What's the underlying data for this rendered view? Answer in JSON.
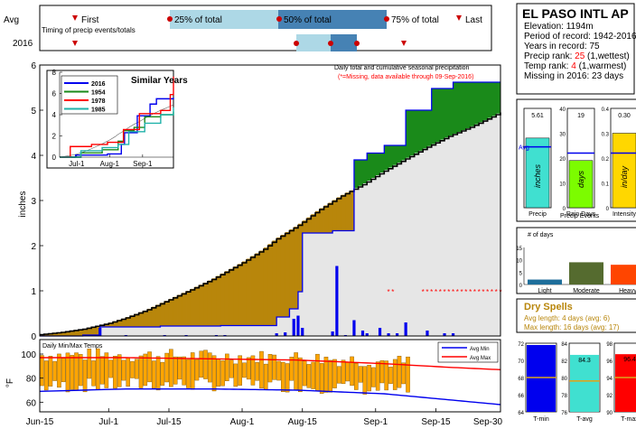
{
  "timing": {
    "avg_label": "Avg",
    "year_label": "2016",
    "caption": "Timing of precip events/totals",
    "first_label": "First",
    "p25_label": "25% of total",
    "p50_label": "50% of total",
    "p75_label": "75% of total",
    "last_label": "Last"
  },
  "station": {
    "name": "EL PASO INTL AP",
    "elevation_line": "Elevation: 1194m",
    "period_line": "Period of record: 1942-2016",
    "years_line": "Years in record: 75",
    "precip_rank_prefix": "Precip rank: ",
    "precip_rank_value": "25",
    "precip_rank_suffix": " (1,wettest)",
    "temp_rank_prefix": "Temp rank: ",
    "temp_rank_value": "4",
    "temp_rank_suffix": " (1,warmest)",
    "missing_line": "Missing in 2016: 23 days"
  },
  "colors": {
    "green": "#1a8a1a",
    "brown": "#b8860b",
    "blue": "#0000ee",
    "red": "#ff0000",
    "missing": "#ff0000",
    "grey_fill": "#e6e6e6"
  },
  "chart_data": [
    {
      "type": "area",
      "title": "Daily total and cumulative seasonal precipitation",
      "note": "(*=Missing, data available through 09-Sep-2016)",
      "ylabel": "inches",
      "ylim": [
        0,
        6
      ],
      "yticks": [
        "0",
        "1",
        "2",
        "3",
        "4",
        "5",
        "6"
      ],
      "xticks": [
        "Jun-15",
        "Jul-1",
        "Jul-15",
        "Aug-1",
        "Aug-15",
        "Sep-1",
        "Sep-15",
        "Sep-30"
      ],
      "x_days": [
        0,
        16,
        30,
        47,
        61,
        78,
        92,
        107
      ],
      "avg_cum": [
        [
          0,
          0.03
        ],
        [
          5,
          0.08
        ],
        [
          10,
          0.15
        ],
        [
          16,
          0.28
        ],
        [
          20,
          0.4
        ],
        [
          25,
          0.58
        ],
        [
          30,
          0.8
        ],
        [
          35,
          1.02
        ],
        [
          40,
          1.25
        ],
        [
          47,
          1.62
        ],
        [
          52,
          1.92
        ],
        [
          55,
          2.15
        ],
        [
          60,
          2.45
        ],
        [
          65,
          2.8
        ],
        [
          70,
          3.1
        ],
        [
          75,
          3.35
        ],
        [
          80,
          3.65
        ],
        [
          85,
          3.92
        ],
        [
          90,
          4.18
        ],
        [
          95,
          4.42
        ],
        [
          100,
          4.62
        ],
        [
          105,
          4.85
        ],
        [
          107,
          4.95
        ]
      ],
      "cum_2016": [
        [
          0,
          0.0
        ],
        [
          10,
          0.02
        ],
        [
          14,
          0.2
        ],
        [
          20,
          0.2
        ],
        [
          28,
          0.22
        ],
        [
          42,
          0.23
        ],
        [
          55,
          0.42
        ],
        [
          58,
          0.6
        ],
        [
          60,
          0.98
        ],
        [
          61,
          2.28
        ],
        [
          68,
          2.33
        ],
        [
          73,
          3.9
        ],
        [
          76,
          4.05
        ],
        [
          80,
          4.22
        ],
        [
          85,
          5.0
        ],
        [
          91,
          5.48
        ],
        [
          96,
          5.62
        ],
        [
          103,
          5.62
        ],
        [
          107,
          5.62
        ]
      ],
      "daily_bars": [
        [
          14,
          0.18
        ],
        [
          20,
          0.02
        ],
        [
          29,
          0.02
        ],
        [
          34,
          0.02
        ],
        [
          41,
          0.02
        ],
        [
          43,
          0.02
        ],
        [
          55,
          0.06
        ],
        [
          57,
          0.08
        ],
        [
          59,
          0.38
        ],
        [
          60,
          0.45
        ],
        [
          61,
          0.18
        ],
        [
          68,
          0.1
        ],
        [
          69,
          1.55
        ],
        [
          71,
          0.02
        ],
        [
          73,
          0.35
        ],
        [
          75,
          0.12
        ],
        [
          76,
          0.06
        ],
        [
          79,
          0.18
        ],
        [
          81,
          0.06
        ],
        [
          83,
          0.06
        ],
        [
          85,
          0.3
        ],
        [
          90,
          0.12
        ],
        [
          94,
          0.06
        ],
        [
          96,
          0.06
        ]
      ],
      "missing_days": [
        [
          81,
          82
        ],
        [
          89,
          107
        ]
      ]
    },
    {
      "type": "line",
      "title": "Similar Years",
      "xticks": [
        "Jul-1",
        "Aug-1",
        "Sep-1"
      ],
      "yticks": [
        "0",
        "2",
        "4",
        "6",
        "8"
      ],
      "ylim": [
        0,
        8
      ],
      "series": [
        {
          "name": "2016",
          "color": "#0000ee",
          "values": [
            [
              0,
              0
            ],
            [
              15,
              0.2
            ],
            [
              45,
              0.3
            ],
            [
              58,
              1.2
            ],
            [
              61,
              2.3
            ],
            [
              73,
              3.9
            ],
            [
              85,
              5
            ],
            [
              91,
              5.5
            ],
            [
              107,
              5.6
            ]
          ]
        },
        {
          "name": "1954",
          "color": "#1a8a1a",
          "values": [
            [
              0,
              0
            ],
            [
              20,
              0.4
            ],
            [
              40,
              0.7
            ],
            [
              55,
              1.5
            ],
            [
              60,
              2.5
            ],
            [
              70,
              2.8
            ],
            [
              80,
              3.8
            ],
            [
              95,
              4.0
            ],
            [
              107,
              4.3
            ]
          ]
        },
        {
          "name": "1978",
          "color": "#ff0000",
          "values": [
            [
              0,
              0
            ],
            [
              10,
              1.0
            ],
            [
              30,
              1.2
            ],
            [
              45,
              1.4
            ],
            [
              60,
              2.6
            ],
            [
              75,
              4.1
            ],
            [
              95,
              4.4
            ],
            [
              104,
              5.9
            ],
            [
              107,
              7.6
            ]
          ]
        },
        {
          "name": "1985",
          "color": "#20b2aa",
          "values": [
            [
              0,
              0
            ],
            [
              20,
              0.6
            ],
            [
              40,
              0.9
            ],
            [
              55,
              1.2
            ],
            [
              65,
              2.4
            ],
            [
              80,
              3.2
            ],
            [
              95,
              4.0
            ],
            [
              107,
              4.7
            ]
          ]
        }
      ]
    },
    {
      "type": "bar",
      "title": "Daily Min/Max Temps",
      "ylabel": "°F",
      "yticks": [
        "60",
        "80",
        "100"
      ],
      "ylim": [
        52,
        112
      ],
      "legend": [
        "Avg Min",
        "Avg Max"
      ],
      "avg_max": [
        [
          0,
          97
        ],
        [
          20,
          97
        ],
        [
          40,
          96
        ],
        [
          60,
          95
        ],
        [
          80,
          92
        ],
        [
          95,
          89
        ],
        [
          107,
          87
        ]
      ],
      "avg_min": [
        [
          0,
          69
        ],
        [
          20,
          71
        ],
        [
          40,
          71
        ],
        [
          60,
          70
        ],
        [
          80,
          67
        ],
        [
          95,
          62
        ],
        [
          107,
          58
        ]
      ]
    },
    {
      "type": "bar",
      "title": "Precip Events",
      "panels": [
        {
          "label": "Precip",
          "value": "5.61",
          "avg": 4.9,
          "max": 8.0,
          "unit": "inches",
          "color": "#40e0d0"
        },
        {
          "label": "Rain Days",
          "value": "19",
          "avg": 22,
          "max": 40,
          "unit": "days",
          "color": "#7cfc00"
        },
        {
          "label": "Intensity",
          "value": "0.30",
          "avg": 0.22,
          "max": 0.4,
          "unit": "in/day",
          "color": "#ffd700"
        }
      ],
      "avg_label": "Avg"
    },
    {
      "type": "bar",
      "title": "# of days",
      "categories": [
        "Light",
        "Moderate",
        "Heavy"
      ],
      "values": [
        2,
        9,
        8
      ],
      "ylim": [
        0,
        15
      ],
      "yticks": [
        "0",
        "5",
        "10",
        "15"
      ],
      "colors": [
        "#1e6e9a",
        "#556b2f",
        "#ff4500"
      ]
    },
    {
      "type": "bar",
      "title": "Temperature",
      "panels": [
        {
          "label": "T-min",
          "value": "",
          "avg": 68,
          "ylim": [
            64,
            72
          ],
          "yticks": [
            "64",
            "66",
            "68",
            "70",
            "72"
          ],
          "color": "#0000ee"
        },
        {
          "label": "T-avg",
          "value": "84.3",
          "avg": 80.5,
          "ylim": [
            76,
            86
          ],
          "yticks": [
            "76",
            "78",
            "80",
            "82",
            "84"
          ],
          "color": "#40e0d0"
        },
        {
          "label": "T-max",
          "value": "96.4",
          "avg": 93,
          "ylim": [
            88,
            98
          ],
          "yticks": [
            "90",
            "92",
            "94",
            "96",
            "98"
          ],
          "color": "#ff0000"
        }
      ]
    }
  ],
  "dry_spells": {
    "title": "Dry Spells",
    "avg_line": "Avg length: 4 days (avg: 6)",
    "max_line": "Max length: 16 days (avg: 17)"
  }
}
